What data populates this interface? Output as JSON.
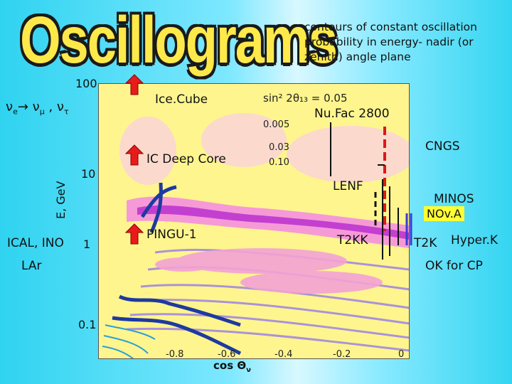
{
  "title": "Oscillograms",
  "description": "contours of constant oscillation probability in energy- nadir (or zenith) angle plane",
  "channel": {
    "nu_e": "ν",
    "e_sub": "e",
    "arrow": "→",
    "nu_mu": "ν",
    "mu_sub": "μ",
    "sep": " , ",
    "nu_tau": "ν",
    "tau_sub": "τ"
  },
  "y_axis": {
    "label": "E, GeV",
    "ticks": [
      "100",
      "10",
      "1",
      "0.1"
    ]
  },
  "x_axis": {
    "label": "cos Θ",
    "label_sub": "ν",
    "ticks": [
      "-0.8",
      "-0.6",
      "-0.4",
      "-0.2",
      "0"
    ]
  },
  "plot_label": {
    "text": "sin² 2θ₁₃ = 0.05"
  },
  "contour_labels": [
    "0.005",
    "0.03",
    "0.10"
  ],
  "experiments": {
    "icecube": "Ice.Cube",
    "ic_deep_core": "IC Deep Core",
    "pingu": "PINGU-1",
    "ical_ino": "ICAL, INO",
    "lar": "LAr",
    "nufac": "Nu.Fac 2800",
    "cngs": "CNGS",
    "lenf": "LENF",
    "minos": "MINOS",
    "nova": "NOv.A",
    "t2kk": "T2KK",
    "t2k": "T2K",
    "hyperk": "Hyper.K",
    "ok_cp": "OK for CP"
  },
  "colors": {
    "arrow_red": "#e81b1b",
    "nova_box": "#ffff33",
    "hyperk_line": "#3a3ad0"
  }
}
